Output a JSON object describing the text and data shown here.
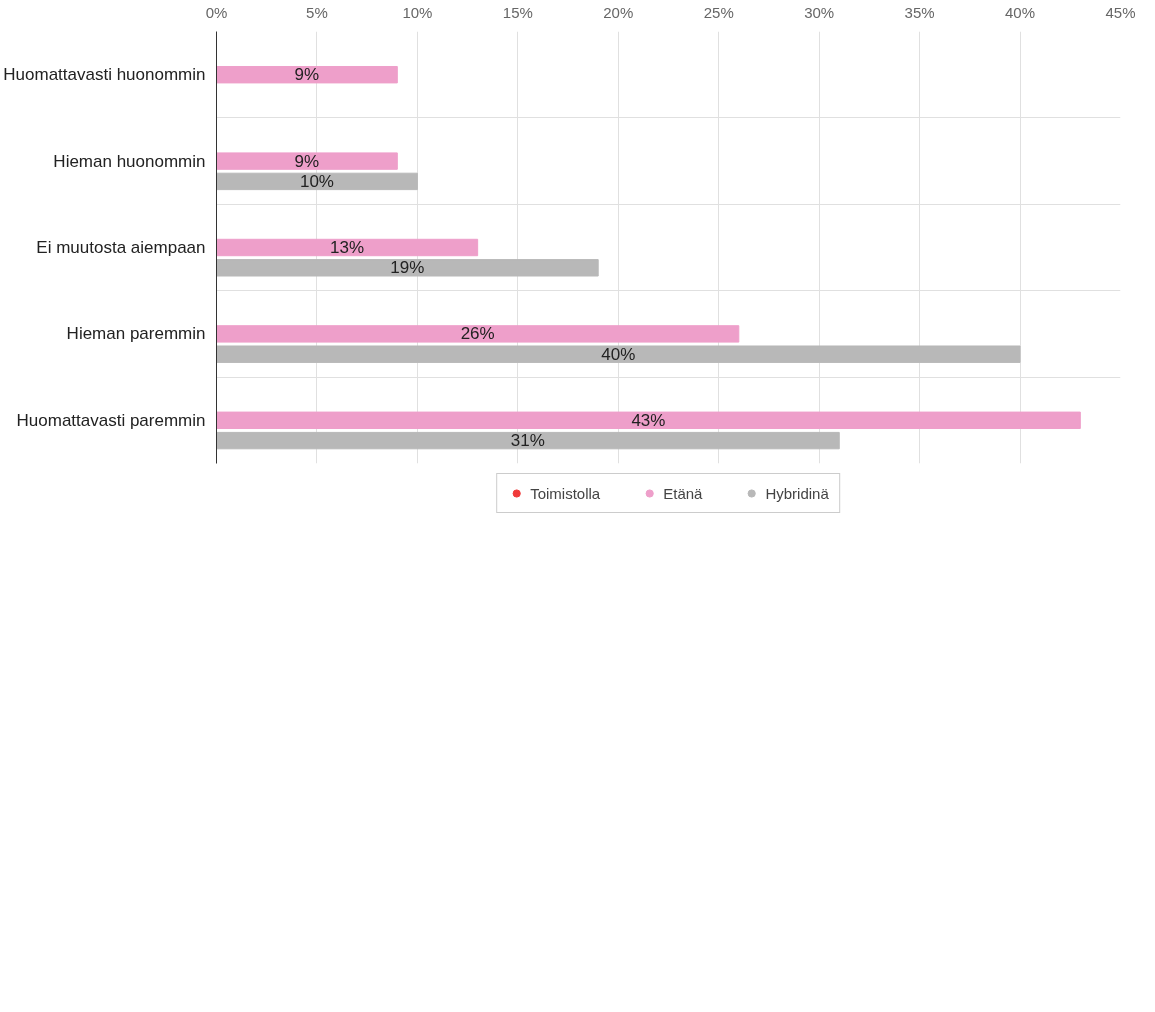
{
  "chart_data": {
    "type": "bar",
    "orientation": "horizontal",
    "categories": [
      "Huomattavasti huonommin",
      "Hieman huonommin",
      "Ei muutosta aiempaan",
      "Hieman paremmin",
      "Huomattavasti paremmin"
    ],
    "series": [
      {
        "name": "Toimistolla",
        "color": "#f03a3a",
        "values": [
          null,
          null,
          null,
          null,
          null
        ]
      },
      {
        "name": "Etänä",
        "color": "#ee9fca",
        "values": [
          9,
          9,
          13,
          26,
          43
        ],
        "value_labels": [
          "9%",
          "9%",
          "13%",
          "26%",
          "43%"
        ]
      },
      {
        "name": "Hybridinä",
        "color": "#b8b8b8",
        "values": [
          null,
          10,
          19,
          40,
          31
        ],
        "value_labels": [
          null,
          "10%",
          "19%",
          "40%",
          "31%"
        ]
      }
    ],
    "xlim": [
      0,
      45
    ],
    "xticks": [
      {
        "value": 0,
        "label": "0%"
      },
      {
        "value": 5,
        "label": "5%"
      },
      {
        "value": 10,
        "label": "10%"
      },
      {
        "value": 15,
        "label": "15%"
      },
      {
        "value": 20,
        "label": "20%"
      },
      {
        "value": 25,
        "label": "25%"
      },
      {
        "value": 30,
        "label": "30%"
      },
      {
        "value": 35,
        "label": "35%"
      },
      {
        "value": 40,
        "label": "40%"
      },
      {
        "value": 45,
        "label": "45%"
      }
    ],
    "grid": true,
    "legend": "bottom"
  }
}
